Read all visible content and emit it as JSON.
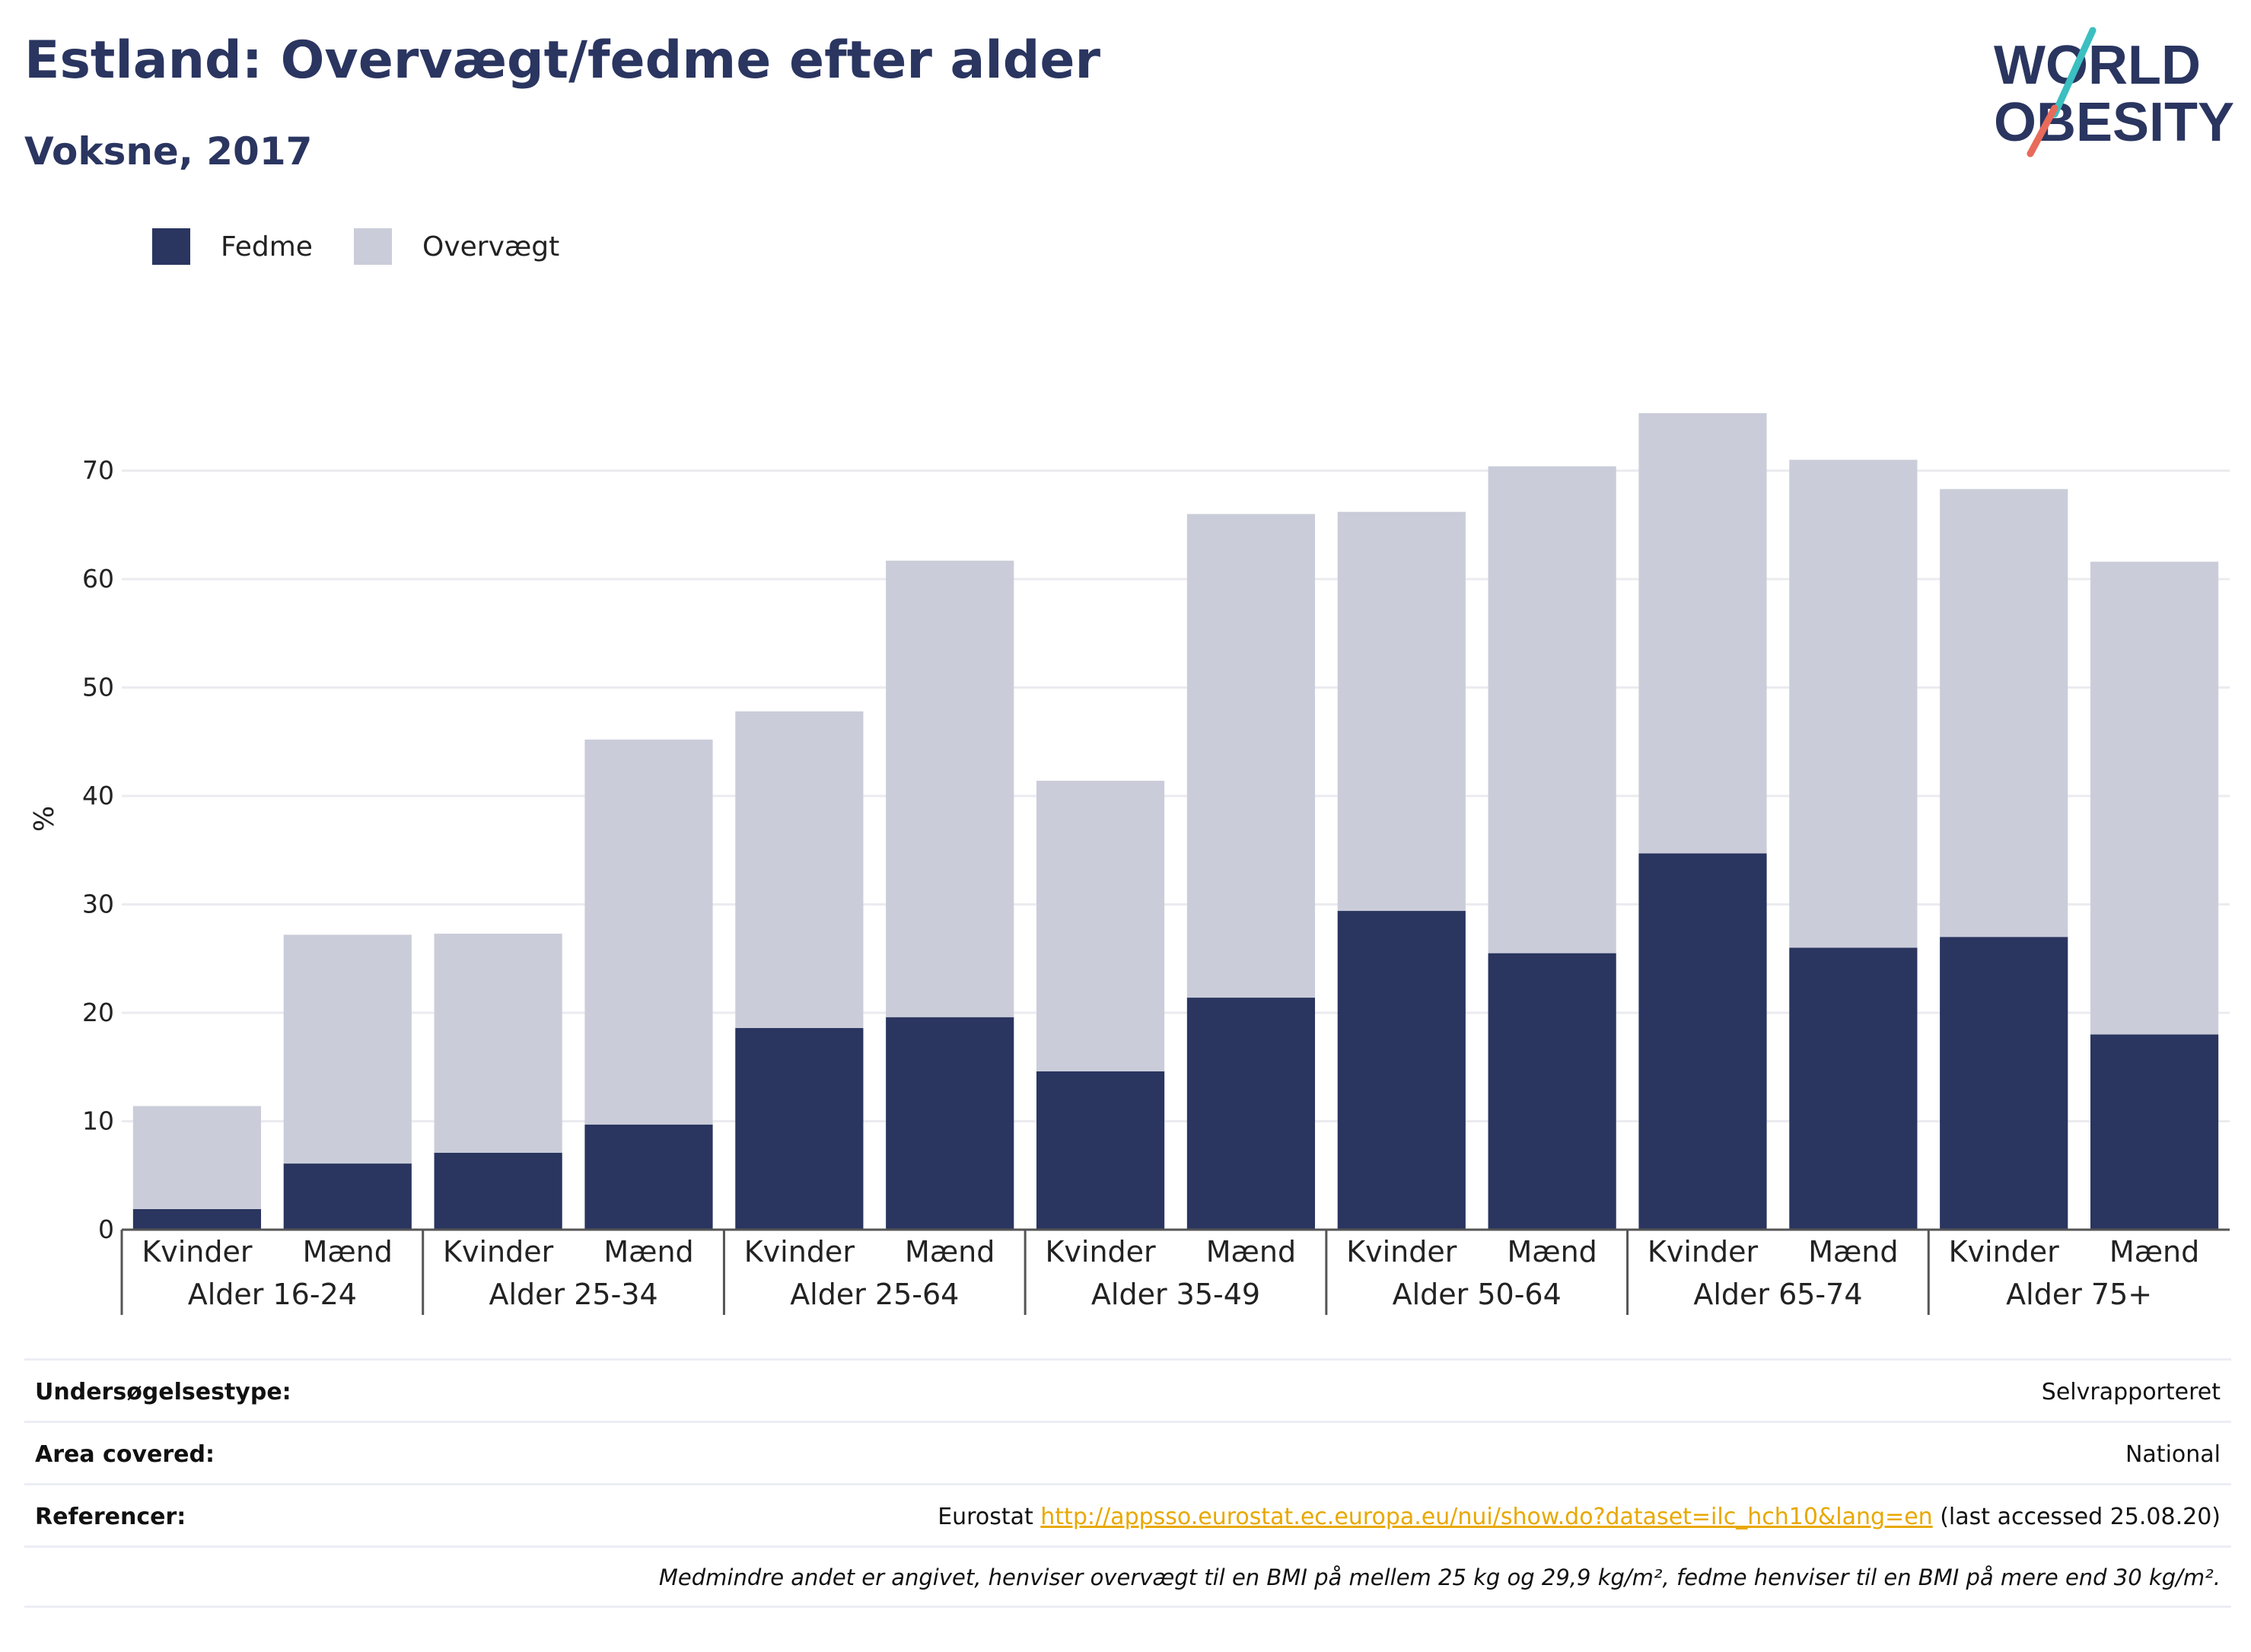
{
  "header": {
    "title": "Estland: Overvægt/fedme efter alder",
    "subtitle": "Voksne, 2017"
  },
  "logo": {
    "line1": "WORLD",
    "line2": "OBESITY",
    "accent_colors": [
      "#3bbfc1",
      "#e86a5a"
    ]
  },
  "chart_data": {
    "type": "bar",
    "stacked": true,
    "ylabel": "%",
    "ylim": [
      0,
      80
    ],
    "yticks": [
      0,
      10,
      20,
      30,
      40,
      50,
      60,
      70
    ],
    "grid": true,
    "legend_position": "top-left",
    "categories": [
      {
        "group": "Alder 16-24",
        "sex": "Kvinder"
      },
      {
        "group": "Alder 16-24",
        "sex": "Mænd"
      },
      {
        "group": "Alder 25-34",
        "sex": "Kvinder"
      },
      {
        "group": "Alder 25-34",
        "sex": "Mænd"
      },
      {
        "group": "Alder 25-64",
        "sex": "Kvinder"
      },
      {
        "group": "Alder 25-64",
        "sex": "Mænd"
      },
      {
        "group": "Alder 35-49",
        "sex": "Kvinder"
      },
      {
        "group": "Alder 35-49",
        "sex": "Mænd"
      },
      {
        "group": "Alder 50-64",
        "sex": "Kvinder"
      },
      {
        "group": "Alder 50-64",
        "sex": "Mænd"
      },
      {
        "group": "Alder 65-74",
        "sex": "Kvinder"
      },
      {
        "group": "Alder 65-74",
        "sex": "Mænd"
      },
      {
        "group": "Alder 75+",
        "sex": "Kvinder"
      },
      {
        "group": "Alder 75+",
        "sex": "Mænd"
      }
    ],
    "groups": [
      "Alder 16-24",
      "Alder 25-34",
      "Alder 25-64",
      "Alder 35-49",
      "Alder 50-64",
      "Alder 65-74",
      "Alder 75+"
    ],
    "series": [
      {
        "name": "Fedme",
        "color": "#2a3560",
        "values": [
          1.9,
          6.1,
          7.1,
          9.7,
          18.6,
          19.6,
          14.6,
          21.4,
          29.4,
          25.5,
          34.7,
          26.0,
          27.0,
          18.0
        ]
      },
      {
        "name": "Overvægt",
        "color": "#cacdd9",
        "values": [
          9.5,
          21.1,
          20.2,
          35.5,
          29.2,
          42.1,
          26.8,
          44.6,
          36.8,
          44.9,
          40.6,
          45.0,
          41.3,
          43.6
        ]
      }
    ]
  },
  "meta": {
    "rows": [
      {
        "label": "Undersøgelsestype:",
        "value": "Selvrapporteret"
      },
      {
        "label": "Area covered:",
        "value": "National"
      }
    ],
    "references": {
      "label": "Referencer:",
      "prefix": "Eurostat ",
      "link": "http://appsso.eurostat.ec.europa.eu/nui/show.do?dataset=ilc_hch10&lang=en",
      "suffix": " (last accessed 25.08.20)"
    },
    "note": "Medmindre andet er angivet, henviser overvægt til en BMI på mellem 25 kg og 29,9 kg/m², fedme henviser til en BMI på mere end 30 kg/m²."
  }
}
